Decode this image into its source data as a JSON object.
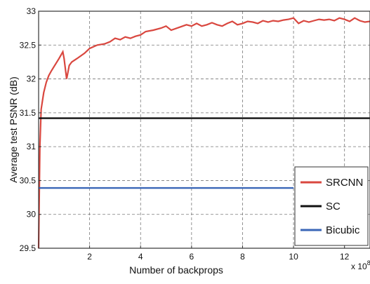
{
  "chart_data": {
    "type": "line",
    "xlabel": "Number of backprops",
    "ylabel": "Average test PSNR (dB)",
    "x_multiplier_label": "x 10",
    "x_multiplier_exponent": "8",
    "xlim": [
      0,
      13
    ],
    "ylim": [
      29.5,
      33
    ],
    "xticks": [
      2,
      4,
      6,
      8,
      10,
      12
    ],
    "xtick_labels": [
      "2",
      "4",
      "6",
      "8",
      "10",
      "12"
    ],
    "yticks": [
      29.5,
      30,
      30.5,
      31,
      31.5,
      32,
      32.5,
      33
    ],
    "ytick_labels": [
      "29.5",
      "30",
      "30.5",
      "31",
      "31.5",
      "32",
      "32.5",
      "33"
    ],
    "grid": true,
    "legend_position": "lower-right",
    "series": [
      {
        "name": "SRCNN",
        "color": "#d9473f",
        "x": [
          0,
          0.05,
          0.1,
          0.2,
          0.3,
          0.4,
          0.5,
          0.6,
          0.8,
          0.95,
          1.0,
          1.05,
          1.1,
          1.15,
          1.2,
          1.3,
          1.5,
          1.8,
          2.0,
          2.3,
          2.6,
          2.8,
          3.0,
          3.2,
          3.4,
          3.6,
          3.8,
          4.0,
          4.2,
          4.5,
          4.8,
          5.0,
          5.2,
          5.5,
          5.8,
          6.0,
          6.2,
          6.4,
          6.6,
          6.8,
          7.0,
          7.2,
          7.4,
          7.6,
          7.8,
          8.0,
          8.2,
          8.4,
          8.6,
          8.8,
          9.0,
          9.2,
          9.4,
          9.6,
          9.8,
          10.0,
          10.2,
          10.4,
          10.6,
          10.8,
          11.0,
          11.2,
          11.4,
          11.6,
          11.8,
          12.0,
          12.2,
          12.4,
          12.6,
          12.8,
          13.0
        ],
        "y": [
          29.5,
          31.0,
          31.55,
          31.8,
          31.95,
          32.05,
          32.12,
          32.18,
          32.3,
          32.4,
          32.3,
          32.15,
          32.0,
          32.1,
          32.2,
          32.25,
          32.3,
          32.38,
          32.45,
          32.5,
          32.52,
          32.55,
          32.6,
          32.58,
          32.62,
          32.6,
          32.63,
          32.65,
          32.7,
          32.72,
          32.75,
          32.78,
          32.72,
          32.76,
          32.8,
          32.78,
          32.82,
          32.78,
          32.8,
          32.83,
          32.8,
          32.78,
          32.82,
          32.85,
          32.8,
          32.82,
          32.85,
          32.84,
          32.82,
          32.86,
          32.84,
          32.86,
          32.85,
          32.87,
          32.88,
          32.9,
          32.82,
          32.86,
          32.84,
          32.86,
          32.88,
          32.87,
          32.88,
          32.86,
          32.9,
          32.88,
          32.85,
          32.9,
          32.86,
          32.84,
          32.85
        ]
      },
      {
        "name": "SC",
        "color": "#111111",
        "x": [
          0,
          13
        ],
        "y": [
          31.42,
          31.42
        ]
      },
      {
        "name": "Bicubic",
        "color": "#3a66b7",
        "x": [
          0,
          10
        ],
        "y": [
          30.39,
          30.39
        ]
      }
    ],
    "legend": [
      "SRCNN",
      "SC",
      "Bicubic"
    ]
  }
}
